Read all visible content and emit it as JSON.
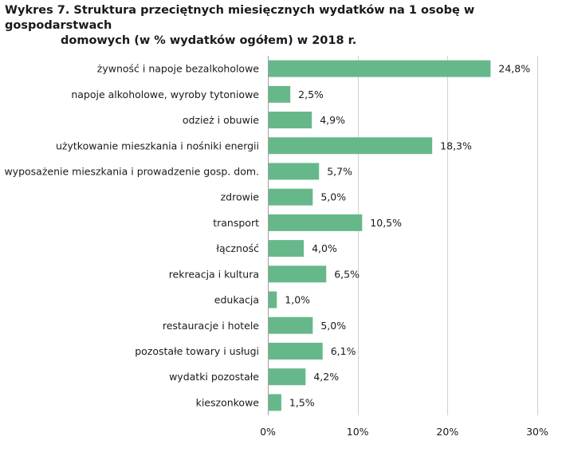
{
  "title": {
    "line1": "Wykres 7. Struktura przeciętnych miesięcznych wydatków na 1 osobę w gospodarstwach",
    "line2": "domowych (w % wydatków ogółem) w 2018 r."
  },
  "chart_data": {
    "type": "bar",
    "orientation": "horizontal",
    "categories": [
      "żywność i napoje bezalkoholowe",
      "napoje alkoholowe, wyroby tytoniowe",
      "odzież i obuwie",
      "użytkowanie mieszkania i nośniki energii",
      "wyposażenie mieszkania i prowadzenie gosp. dom.",
      "zdrowie",
      "transport",
      "łączność",
      "rekreacja i kultura",
      "edukacja",
      "restauracje i hotele",
      "pozostałe towary i usługi",
      "wydatki pozostałe",
      "kieszonkowe"
    ],
    "values": [
      24.8,
      2.5,
      4.9,
      18.3,
      5.7,
      5.0,
      10.5,
      4.0,
      6.5,
      1.0,
      5.0,
      6.1,
      4.2,
      1.5
    ],
    "value_labels": [
      "24,8%",
      "2,5%",
      "4,9%",
      "18,3%",
      "5,7%",
      "5,0%",
      "10,5%",
      "4,0%",
      "6,5%",
      "1,0%",
      "5,0%",
      "6,1%",
      "4,2%",
      "1,5%"
    ],
    "xlim": [
      0,
      30
    ],
    "xticks": [
      0,
      10,
      20,
      30
    ],
    "xtick_labels": [
      "0%",
      "10%",
      "20%",
      "30%"
    ],
    "grid": true,
    "bar_color": "#66b88a",
    "grid_color": "#d0d0d0"
  }
}
